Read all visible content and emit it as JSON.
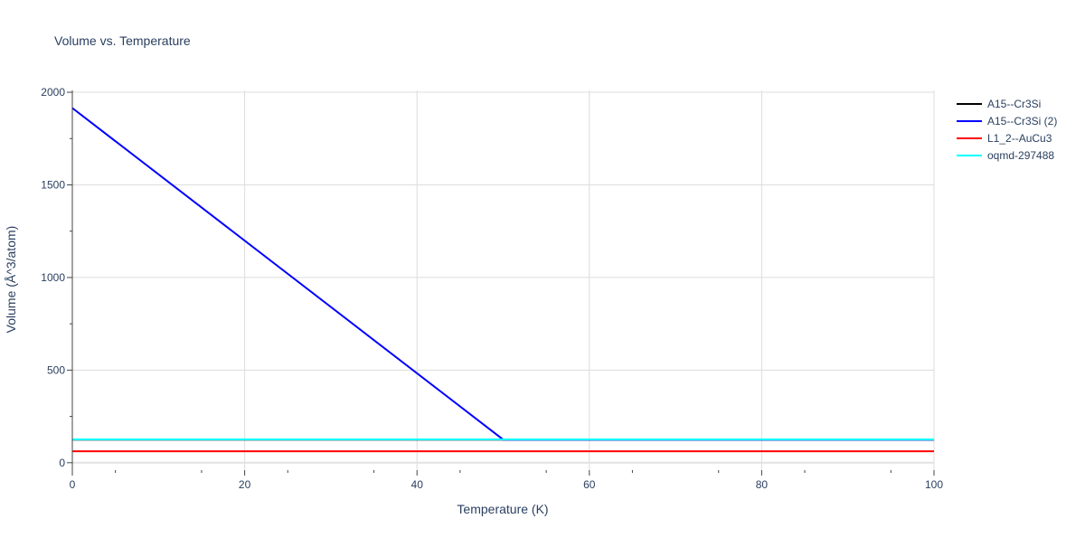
{
  "chart_data": {
    "type": "line",
    "title": "Volume vs. Temperature",
    "xlabel": "Temperature (K)",
    "ylabel": "Volume (Å^3/atom)",
    "xlim": [
      0,
      100
    ],
    "ylim": [
      -40,
      2010
    ],
    "x_ticks": [
      0,
      20,
      40,
      60,
      80,
      100
    ],
    "y_ticks": [
      0,
      500,
      1000,
      1500,
      2000
    ],
    "grid": true,
    "legend_position": "top-right outside",
    "series": [
      {
        "name": "A15--Cr3Si",
        "color": "#000000",
        "x": [
          0,
          100
        ],
        "y": [
          125,
          125
        ]
      },
      {
        "name": "A15--Cr3Si (2)",
        "color": "#0000ff",
        "x": [
          0,
          50,
          100
        ],
        "y": [
          1915,
          125,
          125
        ]
      },
      {
        "name": "L1_2--AuCu3",
        "color": "#ff0000",
        "x": [
          0,
          100
        ],
        "y": [
          62,
          62
        ]
      },
      {
        "name": "oqmd-297488",
        "color": "#00ffff",
        "x": [
          0,
          100
        ],
        "y": [
          126,
          126
        ]
      }
    ]
  }
}
